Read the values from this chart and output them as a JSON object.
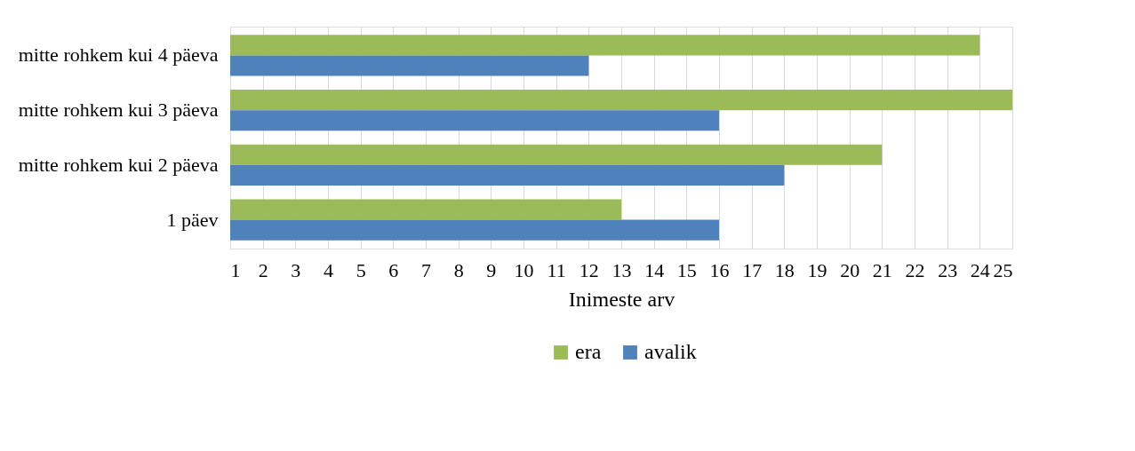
{
  "chart_data": {
    "type": "bar",
    "orientation": "horizontal",
    "xlabel": "Inimeste arv",
    "categories": [
      "mitte rohkem kui 4 päeva",
      "mitte rohkem kui 3 päeva",
      "mitte rohkem kui 2 päeva",
      "1 päev"
    ],
    "series": [
      {
        "name": "era",
        "color": "#9bbb59",
        "values": [
          24,
          25,
          21,
          13
        ]
      },
      {
        "name": "avalik",
        "color": "#4f81bd",
        "values": [
          12,
          16,
          18,
          16
        ]
      }
    ],
    "xlim": [
      1,
      25
    ],
    "xticks": [
      1,
      2,
      3,
      4,
      5,
      6,
      7,
      8,
      9,
      10,
      11,
      12,
      13,
      14,
      15,
      16,
      17,
      18,
      19,
      20,
      21,
      22,
      23,
      24,
      25
    ],
    "grid": "x",
    "legend": "bottom"
  }
}
